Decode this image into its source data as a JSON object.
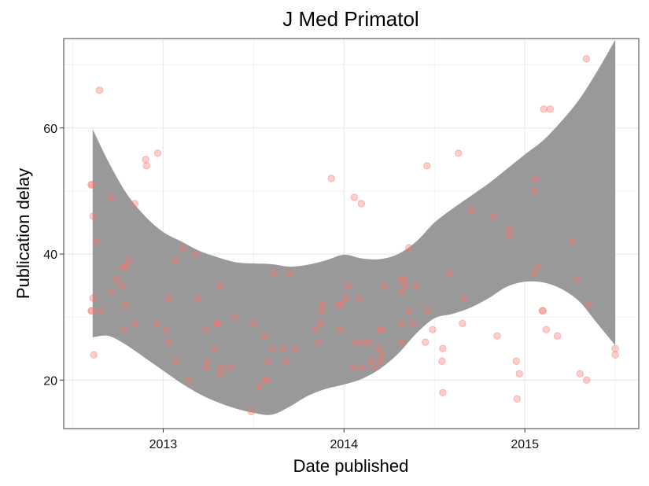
{
  "chart_data": {
    "type": "scatter",
    "title": "J Med Primatol",
    "xlabel": "Date published",
    "ylabel": "Publication delay",
    "x_ticks": [
      "2013",
      "2014",
      "2015"
    ],
    "y_ticks": [
      20,
      40,
      60
    ],
    "xlim": [
      2012.45,
      2015.63
    ],
    "ylim": [
      12.3,
      74.2
    ],
    "grid": true,
    "legend": "none",
    "colors": {
      "points": "#F8766D",
      "ribbon": "#999999",
      "panel_border": "#7f7f7f",
      "grid": "#ebebeb"
    },
    "points": [
      {
        "x": 2012.602,
        "y": 51
      },
      {
        "x": 2012.606,
        "y": 51
      },
      {
        "x": 2012.602,
        "y": 31
      },
      {
        "x": 2012.606,
        "y": 31
      },
      {
        "x": 2012.612,
        "y": 46
      },
      {
        "x": 2012.612,
        "y": 33
      },
      {
        "x": 2012.616,
        "y": 24
      },
      {
        "x": 2012.63,
        "y": 42
      },
      {
        "x": 2012.648,
        "y": 66
      },
      {
        "x": 2012.652,
        "y": 31
      },
      {
        "x": 2012.712,
        "y": 49
      },
      {
        "x": 2012.712,
        "y": 34
      },
      {
        "x": 2012.743,
        "y": 36
      },
      {
        "x": 2012.773,
        "y": 35
      },
      {
        "x": 2012.782,
        "y": 38
      },
      {
        "x": 2012.786,
        "y": 38
      },
      {
        "x": 2012.782,
        "y": 28
      },
      {
        "x": 2012.791,
        "y": 32
      },
      {
        "x": 2012.812,
        "y": 39
      },
      {
        "x": 2012.842,
        "y": 29
      },
      {
        "x": 2012.843,
        "y": 48
      },
      {
        "x": 2012.903,
        "y": 55
      },
      {
        "x": 2012.908,
        "y": 54
      },
      {
        "x": 2012.97,
        "y": 56
      },
      {
        "x": 2012.963,
        "y": 29
      },
      {
        "x": 2013.017,
        "y": 28
      },
      {
        "x": 2013.03,
        "y": 33
      },
      {
        "x": 2013.03,
        "y": 26
      },
      {
        "x": 2013.067,
        "y": 39
      },
      {
        "x": 2013.07,
        "y": 23
      },
      {
        "x": 2013.112,
        "y": 41
      },
      {
        "x": 2013.14,
        "y": 20
      },
      {
        "x": 2013.181,
        "y": 40
      },
      {
        "x": 2013.191,
        "y": 33
      },
      {
        "x": 2013.235,
        "y": 28
      },
      {
        "x": 2013.239,
        "y": 22
      },
      {
        "x": 2013.244,
        "y": 23
      },
      {
        "x": 2013.286,
        "y": 25
      },
      {
        "x": 2013.298,
        "y": 29
      },
      {
        "x": 2013.302,
        "y": 29
      },
      {
        "x": 2013.316,
        "y": 35
      },
      {
        "x": 2013.32,
        "y": 22
      },
      {
        "x": 2013.316,
        "y": 21
      },
      {
        "x": 2013.373,
        "y": 22
      },
      {
        "x": 2013.394,
        "y": 30
      },
      {
        "x": 2013.487,
        "y": 15
      },
      {
        "x": 2013.5,
        "y": 29
      },
      {
        "x": 2013.53,
        "y": 19
      },
      {
        "x": 2013.56,
        "y": 27
      },
      {
        "x": 2013.567,
        "y": 20
      },
      {
        "x": 2013.571,
        "y": 20
      },
      {
        "x": 2013.58,
        "y": 23
      },
      {
        "x": 2013.602,
        "y": 25
      },
      {
        "x": 2013.612,
        "y": 37
      },
      {
        "x": 2013.665,
        "y": 25
      },
      {
        "x": 2013.678,
        "y": 23
      },
      {
        "x": 2013.7,
        "y": 37
      },
      {
        "x": 2013.73,
        "y": 25
      },
      {
        "x": 2013.843,
        "y": 28
      },
      {
        "x": 2013.86,
        "y": 26
      },
      {
        "x": 2013.873,
        "y": 29
      },
      {
        "x": 2013.877,
        "y": 31
      },
      {
        "x": 2013.882,
        "y": 32
      },
      {
        "x": 2013.93,
        "y": 52
      },
      {
        "x": 2013.977,
        "y": 32
      },
      {
        "x": 2013.982,
        "y": 32
      },
      {
        "x": 2013.977,
        "y": 28
      },
      {
        "x": 2014.01,
        "y": 33
      },
      {
        "x": 2014.023,
        "y": 35
      },
      {
        "x": 2014.053,
        "y": 22
      },
      {
        "x": 2014.057,
        "y": 49
      },
      {
        "x": 2014.066,
        "y": 26
      },
      {
        "x": 2014.087,
        "y": 33
      },
      {
        "x": 2014.096,
        "y": 48
      },
      {
        "x": 2014.1,
        "y": 22
      },
      {
        "x": 2014.109,
        "y": 26
      },
      {
        "x": 2014.14,
        "y": 26
      },
      {
        "x": 2014.15,
        "y": 23
      },
      {
        "x": 2014.17,
        "y": 22
      },
      {
        "x": 2014.193,
        "y": 25
      },
      {
        "x": 2014.199,
        "y": 23
      },
      {
        "x": 2014.203,
        "y": 28
      },
      {
        "x": 2014.207,
        "y": 28
      },
      {
        "x": 2014.212,
        "y": 24
      },
      {
        "x": 2014.225,
        "y": 35
      },
      {
        "x": 2014.316,
        "y": 36
      },
      {
        "x": 2014.319,
        "y": 34
      },
      {
        "x": 2014.32,
        "y": 29
      },
      {
        "x": 2014.32,
        "y": 26
      },
      {
        "x": 2014.333,
        "y": 36
      },
      {
        "x": 2014.338,
        "y": 35
      },
      {
        "x": 2014.355,
        "y": 31
      },
      {
        "x": 2014.359,
        "y": 41
      },
      {
        "x": 2014.381,
        "y": 29
      },
      {
        "x": 2014.4,
        "y": 35
      },
      {
        "x": 2014.45,
        "y": 26
      },
      {
        "x": 2014.459,
        "y": 54
      },
      {
        "x": 2014.463,
        "y": 31
      },
      {
        "x": 2014.49,
        "y": 28
      },
      {
        "x": 2014.542,
        "y": 23
      },
      {
        "x": 2014.546,
        "y": 25
      },
      {
        "x": 2014.546,
        "y": 18
      },
      {
        "x": 2014.581,
        "y": 37
      },
      {
        "x": 2014.633,
        "y": 56
      },
      {
        "x": 2014.655,
        "y": 29
      },
      {
        "x": 2014.663,
        "y": 33
      },
      {
        "x": 2014.703,
        "y": 47
      },
      {
        "x": 2014.825,
        "y": 46
      },
      {
        "x": 2014.847,
        "y": 27
      },
      {
        "x": 2014.917,
        "y": 44
      },
      {
        "x": 2014.917,
        "y": 43
      },
      {
        "x": 2014.953,
        "y": 23
      },
      {
        "x": 2014.957,
        "y": 17
      },
      {
        "x": 2014.97,
        "y": 21
      },
      {
        "x": 2015.053,
        "y": 37
      },
      {
        "x": 2015.058,
        "y": 52
      },
      {
        "x": 2015.053,
        "y": 50
      },
      {
        "x": 2015.072,
        "y": 38
      },
      {
        "x": 2015.096,
        "y": 31
      },
      {
        "x": 2015.101,
        "y": 31
      },
      {
        "x": 2015.105,
        "y": 63
      },
      {
        "x": 2015.118,
        "y": 28
      },
      {
        "x": 2015.14,
        "y": 63
      },
      {
        "x": 2015.18,
        "y": 27
      },
      {
        "x": 2015.262,
        "y": 42
      },
      {
        "x": 2015.288,
        "y": 36
      },
      {
        "x": 2015.305,
        "y": 21
      },
      {
        "x": 2015.34,
        "y": 71
      },
      {
        "x": 2015.342,
        "y": 20
      },
      {
        "x": 2015.353,
        "y": 32
      },
      {
        "x": 2015.5,
        "y": 25
      },
      {
        "x": 2015.5,
        "y": 24
      }
    ],
    "smooth_band": {
      "x": [
        2012.61,
        2012.7,
        2012.8,
        2012.9,
        2013.0,
        2013.1,
        2013.2,
        2013.3,
        2013.4,
        2013.5,
        2013.6,
        2013.7,
        2013.8,
        2013.9,
        2014.0,
        2014.1,
        2014.2,
        2014.3,
        2014.4,
        2014.5,
        2014.6,
        2014.7,
        2014.8,
        2014.9,
        2015.0,
        2015.1,
        2015.2,
        2015.3,
        2015.4,
        2015.5
      ],
      "upper": [
        59.8,
        54.5,
        49.5,
        46.0,
        43.5,
        42.0,
        40.5,
        39.5,
        38.7,
        38.5,
        38.4,
        38.0,
        38.3,
        39.0,
        39.9,
        39.3,
        39.2,
        40.0,
        42.0,
        45.0,
        47.2,
        49.2,
        51.2,
        53.5,
        55.8,
        58.0,
        61.0,
        64.5,
        69.0,
        74.0
      ],
      "lower": [
        26.8,
        27.0,
        25.5,
        23.5,
        21.5,
        19.5,
        17.8,
        16.5,
        15.5,
        14.8,
        14.5,
        15.8,
        17.5,
        18.6,
        19.3,
        20.2,
        21.8,
        24.2,
        27.4,
        29.8,
        30.5,
        31.5,
        33.0,
        34.8,
        35.6,
        35.5,
        34.5,
        32.5,
        29.0,
        25.5
      ]
    }
  }
}
